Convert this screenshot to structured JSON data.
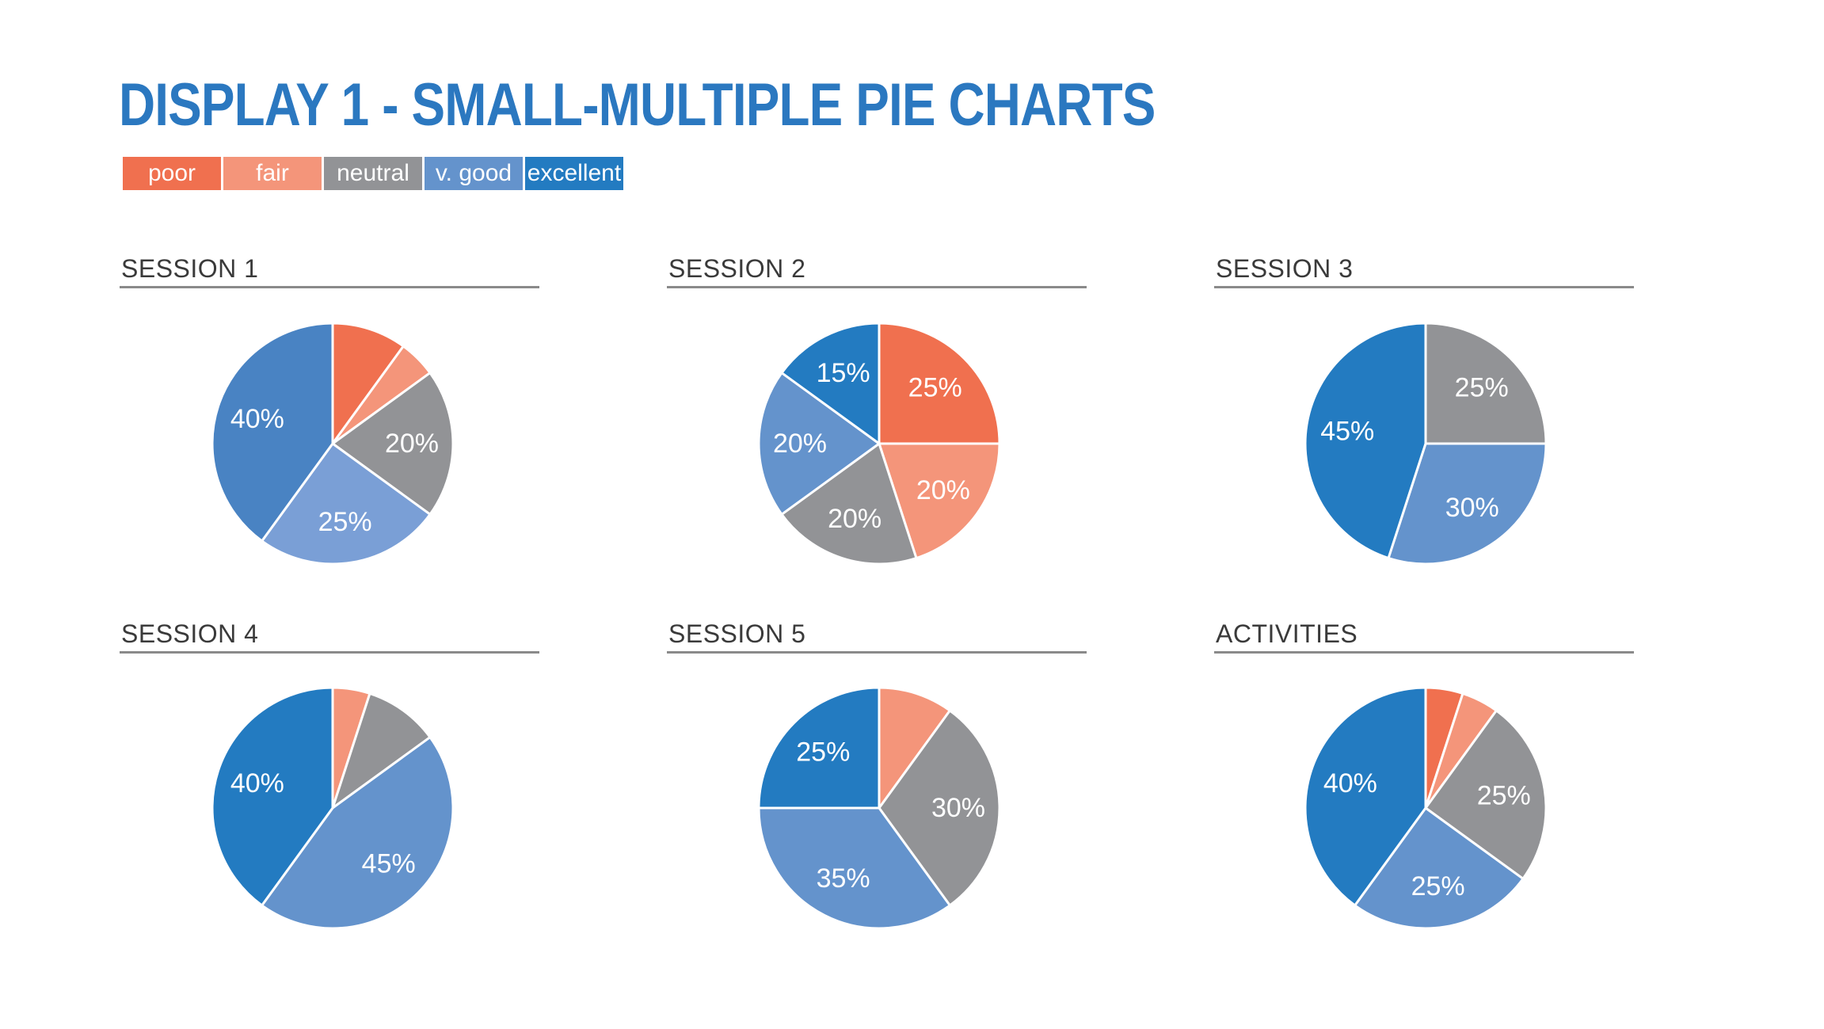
{
  "title": "DISPLAY 1 - SMALL-MULTIPLE PIE CHARTS",
  "colors": {
    "poor": "#f0704f",
    "fair": "#f4957a",
    "neutral": "#929396",
    "v_good": "#6493cc",
    "excellent": "#237bc1"
  },
  "legend": [
    {
      "label": "poor",
      "color": "#f0704f"
    },
    {
      "label": "fair",
      "color": "#f4957a"
    },
    {
      "label": "neutral",
      "color": "#929396"
    },
    {
      "label": "v. good",
      "color": "#6493cc"
    },
    {
      "label": "excellent",
      "color": "#237bc1"
    }
  ],
  "chart_data": [
    {
      "type": "pie",
      "title": "SESSION 1",
      "slices": [
        {
          "category": "poor",
          "value": 10,
          "label": "",
          "color": "#f0704f"
        },
        {
          "category": "fair",
          "value": 5,
          "label": "",
          "color": "#f4957a"
        },
        {
          "category": "neutral",
          "value": 20,
          "label": "20%",
          "color": "#929396"
        },
        {
          "category": "v. good",
          "value": 25,
          "label": "25%",
          "color": "#7a9fd6"
        },
        {
          "category": "excellent",
          "value": 40,
          "label": "40%",
          "color": "#4983c3"
        }
      ]
    },
    {
      "type": "pie",
      "title": "SESSION 2",
      "slices": [
        {
          "category": "poor",
          "value": 25,
          "label": "25%",
          "color": "#f0704f"
        },
        {
          "category": "fair",
          "value": 20,
          "label": "20%",
          "color": "#f4957a"
        },
        {
          "category": "neutral",
          "value": 20,
          "label": "20%",
          "color": "#929396"
        },
        {
          "category": "v. good",
          "value": 20,
          "label": "20%",
          "color": "#6493cc"
        },
        {
          "category": "excellent",
          "value": 15,
          "label": "15%",
          "color": "#237bc1"
        }
      ]
    },
    {
      "type": "pie",
      "title": "SESSION 3",
      "slices": [
        {
          "category": "neutral",
          "value": 25,
          "label": "25%",
          "color": "#929396"
        },
        {
          "category": "v. good",
          "value": 30,
          "label": "30%",
          "color": "#6493cc"
        },
        {
          "category": "excellent",
          "value": 45,
          "label": "45%",
          "color": "#237bc1"
        }
      ]
    },
    {
      "type": "pie",
      "title": "SESSION 4",
      "slices": [
        {
          "category": "fair",
          "value": 5,
          "label": "",
          "color": "#f4957a"
        },
        {
          "category": "neutral",
          "value": 10,
          "label": "",
          "color": "#929396"
        },
        {
          "category": "v. good",
          "value": 45,
          "label": "45%",
          "color": "#6493cc"
        },
        {
          "category": "excellent",
          "value": 40,
          "label": "40%",
          "color": "#237bc1"
        }
      ]
    },
    {
      "type": "pie",
      "title": "SESSION 5",
      "slices": [
        {
          "category": "fair",
          "value": 10,
          "label": "",
          "color": "#f4957a"
        },
        {
          "category": "neutral",
          "value": 30,
          "label": "30%",
          "color": "#929396"
        },
        {
          "category": "v. good",
          "value": 35,
          "label": "35%",
          "color": "#6493cc"
        },
        {
          "category": "excellent",
          "value": 25,
          "label": "25%",
          "color": "#237bc1"
        }
      ]
    },
    {
      "type": "pie",
      "title": "ACTIVITIES",
      "slices": [
        {
          "category": "poor",
          "value": 5,
          "label": "",
          "color": "#f0704f"
        },
        {
          "category": "fair",
          "value": 5,
          "label": "",
          "color": "#f4957a"
        },
        {
          "category": "neutral",
          "value": 25,
          "label": "25%",
          "color": "#929396"
        },
        {
          "category": "v. good",
          "value": 25,
          "label": "25%",
          "color": "#6493cc"
        },
        {
          "category": "excellent",
          "value": 40,
          "label": "40%",
          "color": "#237bc1"
        }
      ]
    }
  ]
}
